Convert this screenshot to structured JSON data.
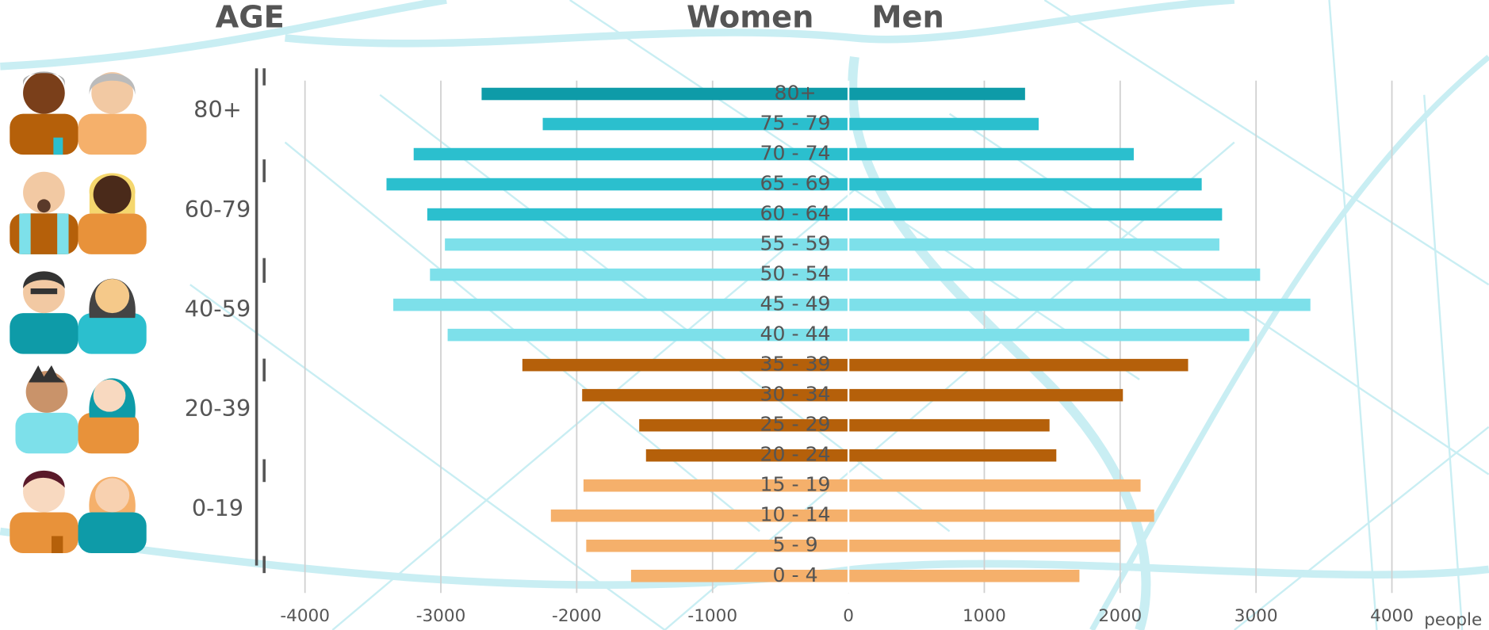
{
  "chart_data": {
    "type": "pyramid",
    "age_header": "AGE",
    "age_groups": [
      "80+",
      "60-79",
      "40-59",
      "20-39",
      "0-19"
    ],
    "categories": [
      "80+",
      "75 - 79",
      "70 - 74",
      "65 - 69",
      "60 - 64",
      "55 - 59",
      "50 - 54",
      "45 - 49",
      "40 - 44",
      "35 - 39",
      "30 - 34",
      "25 - 29",
      "20 - 24",
      "15 - 19",
      "10 - 14",
      "5 - 9",
      "0 - 4"
    ],
    "series": [
      {
        "name": "Women",
        "values": [
          -2700,
          -2250,
          -3200,
          -3400,
          -3100,
          -2970,
          -3080,
          -3350,
          -2950,
          -2400,
          -1960,
          -1540,
          -1490,
          -1950,
          -2190,
          -1930,
          -1600
        ]
      },
      {
        "name": "Men",
        "values": [
          1300,
          1400,
          2100,
          2600,
          2750,
          2730,
          3030,
          3400,
          2950,
          2500,
          2020,
          1480,
          1530,
          2150,
          2250,
          2000,
          1700
        ]
      }
    ],
    "bar_colors": [
      "#0e9ba8",
      "#2bbfce",
      "#2bbfce",
      "#2bbfce",
      "#2bbfce",
      "#7de0ea",
      "#7de0ea",
      "#7de0ea",
      "#7de0ea",
      "#b5600a",
      "#b5600a",
      "#b5600a",
      "#b5600a",
      "#f5b06b",
      "#f5b06b",
      "#f5b06b",
      "#f5b06b"
    ],
    "xlim": [
      -4000,
      4000
    ],
    "xticks": [
      -4000,
      -3000,
      -2000,
      -1000,
      0,
      1000,
      2000,
      3000,
      4000
    ],
    "x_unit": "people",
    "grid": true
  }
}
